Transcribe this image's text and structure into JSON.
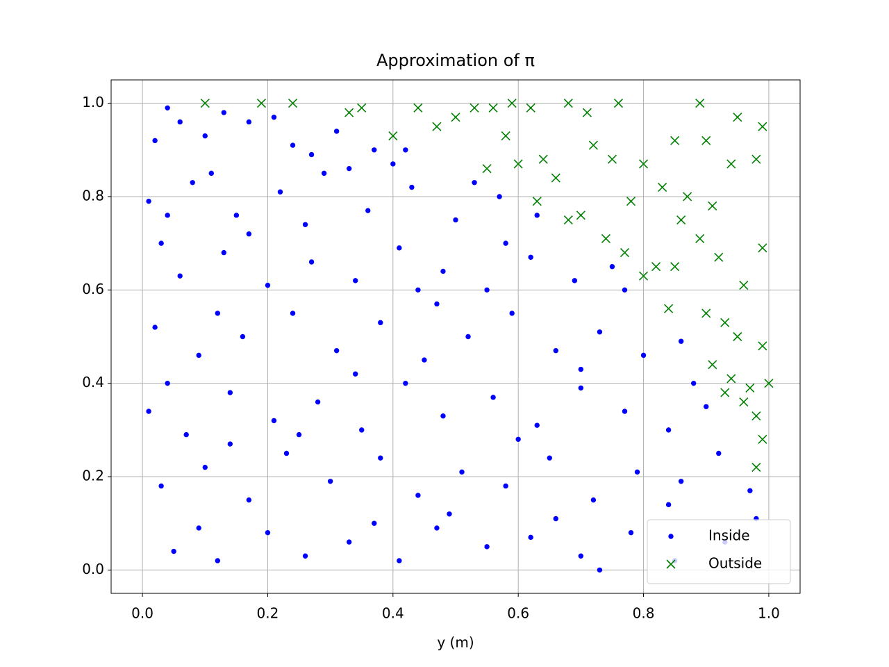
{
  "chart_data": {
    "type": "scatter",
    "title": "Approximation of π",
    "xlabel": "y (m)",
    "xlim": [
      -0.05,
      1.05
    ],
    "ylim": [
      -0.05,
      1.05
    ],
    "xticks": [
      {
        "value": 0,
        "label": "0.0"
      },
      0.2,
      0.4,
      0.6,
      0.8,
      {
        "value": 1,
        "label": "1.0"
      }
    ],
    "yticks": [
      {
        "value": 0,
        "label": "0.0"
      },
      0.2,
      0.4,
      0.6,
      0.8,
      {
        "value": 1,
        "label": "1.0"
      }
    ],
    "grid": true,
    "legend": "lower right",
    "series": [
      {
        "name": "Inside",
        "color": "#0000ff",
        "marker": "o",
        "x": [
          0.05,
          0.12,
          0.2,
          0.26,
          0.33,
          0.41,
          0.47,
          0.55,
          0.62,
          0.7,
          0.78,
          0.85,
          0.93,
          0.98,
          0.09,
          0.37,
          0.66,
          0.73,
          0.03,
          0.1,
          0.17,
          0.23,
          0.3,
          0.38,
          0.44,
          0.51,
          0.58,
          0.65,
          0.72,
          0.79,
          0.86,
          0.92,
          0.97,
          0.14,
          0.49,
          0.84,
          0.01,
          0.07,
          0.14,
          0.21,
          0.28,
          0.35,
          0.42,
          0.48,
          0.56,
          0.63,
          0.7,
          0.77,
          0.84,
          0.9,
          0.04,
          0.25,
          0.6,
          0.88,
          0.02,
          0.09,
          0.16,
          0.24,
          0.31,
          0.38,
          0.45,
          0.52,
          0.59,
          0.66,
          0.73,
          0.8,
          0.86,
          0.12,
          0.34,
          0.7,
          0.47,
          0.06,
          0.13,
          0.2,
          0.27,
          0.34,
          0.41,
          0.48,
          0.55,
          0.62,
          0.69,
          0.75,
          0.03,
          0.17,
          0.44,
          0.58,
          0.77,
          0.01,
          0.08,
          0.15,
          0.22,
          0.29,
          0.36,
          0.43,
          0.5,
          0.57,
          0.63,
          0.04,
          0.26,
          0.4,
          0.11,
          0.53,
          0.04,
          0.1,
          0.17,
          0.24,
          0.31,
          0.37,
          0.42,
          0.02,
          0.13,
          0.21,
          0.27,
          0.33,
          0.06
        ],
        "values": [
          0.04,
          0.02,
          0.08,
          0.03,
          0.06,
          0.02,
          0.09,
          0.05,
          0.07,
          0.03,
          0.08,
          0.02,
          0.06,
          0.11,
          0.09,
          0.1,
          0.11,
          0.0,
          0.18,
          0.22,
          0.15,
          0.25,
          0.19,
          0.24,
          0.16,
          0.21,
          0.18,
          0.24,
          0.15,
          0.21,
          0.19,
          0.25,
          0.17,
          0.27,
          0.12,
          0.14,
          0.34,
          0.29,
          0.38,
          0.32,
          0.36,
          0.3,
          0.4,
          0.33,
          0.37,
          0.31,
          0.39,
          0.34,
          0.3,
          0.35,
          0.4,
          0.29,
          0.28,
          0.4,
          0.52,
          0.46,
          0.5,
          0.55,
          0.47,
          0.53,
          0.45,
          0.5,
          0.55,
          0.47,
          0.51,
          0.46,
          0.49,
          0.55,
          0.42,
          0.43,
          0.57,
          0.63,
          0.68,
          0.61,
          0.66,
          0.62,
          0.69,
          0.64,
          0.6,
          0.67,
          0.62,
          0.65,
          0.7,
          0.72,
          0.6,
          0.7,
          0.6,
          0.79,
          0.83,
          0.76,
          0.81,
          0.85,
          0.77,
          0.82,
          0.75,
          0.8,
          0.76,
          0.76,
          0.74,
          0.87,
          0.85,
          0.83,
          0.99,
          0.93,
          0.96,
          0.91,
          0.94,
          0.9,
          0.9,
          0.92,
          0.98,
          0.97,
          0.89,
          0.86,
          0.96
        ]
      },
      {
        "name": "Outside",
        "color": "#008000",
        "marker": "x",
        "x": [
          0.1,
          0.19,
          0.24,
          0.33,
          0.35,
          0.4,
          0.44,
          0.47,
          0.5,
          0.53,
          0.56,
          0.59,
          0.62,
          0.68,
          0.71,
          0.76,
          0.89,
          0.95,
          0.99,
          0.55,
          0.6,
          0.64,
          0.66,
          0.7,
          0.72,
          0.75,
          0.8,
          0.83,
          0.87,
          0.9,
          0.94,
          0.98,
          0.63,
          0.68,
          0.74,
          0.77,
          0.8,
          0.82,
          0.85,
          0.89,
          0.92,
          0.96,
          0.99,
          0.84,
          0.9,
          0.93,
          0.95,
          0.99,
          0.91,
          0.94,
          0.97,
          1.0,
          0.98,
          0.96,
          0.99,
          0.98,
          0.93,
          0.86,
          0.78,
          0.85,
          0.91,
          0.58
        ],
        "values": [
          1.0,
          1.0,
          1.0,
          0.98,
          0.99,
          0.93,
          0.99,
          0.95,
          0.97,
          0.99,
          0.99,
          1.0,
          0.99,
          1.0,
          0.98,
          1.0,
          1.0,
          0.97,
          0.95,
          0.86,
          0.87,
          0.88,
          0.84,
          0.76,
          0.91,
          0.88,
          0.87,
          0.82,
          0.8,
          0.92,
          0.87,
          0.88,
          0.79,
          0.75,
          0.71,
          0.68,
          0.63,
          0.65,
          0.65,
          0.71,
          0.67,
          0.61,
          0.69,
          0.56,
          0.55,
          0.53,
          0.5,
          0.48,
          0.44,
          0.41,
          0.39,
          0.4,
          0.33,
          0.36,
          0.28,
          0.22,
          0.38,
          0.75,
          0.79,
          0.92,
          0.78,
          0.93
        ]
      }
    ]
  }
}
